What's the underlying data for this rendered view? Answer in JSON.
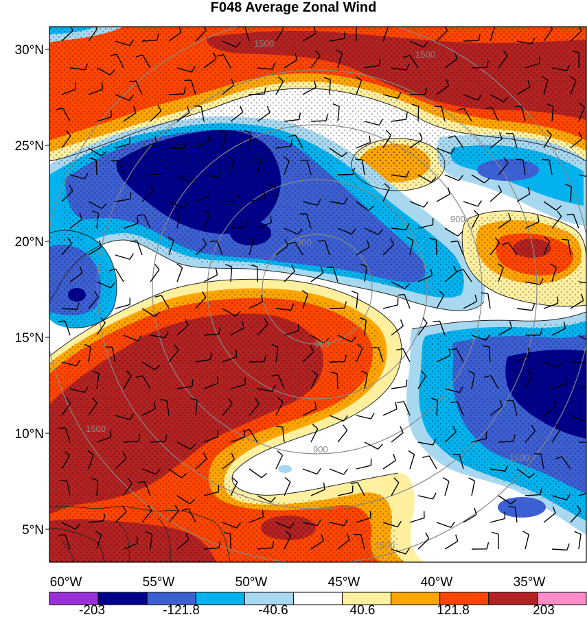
{
  "title": "F048 Average Zonal Wind",
  "lat_labels": [
    "30°N",
    "25°N",
    "20°N",
    "15°N",
    "10°N",
    "5°N"
  ],
  "lon_labels": [
    "60°W",
    "55°W",
    "50°W",
    "45°W",
    "40°W",
    "35°W"
  ],
  "colorbar": {
    "labels": [
      "-203",
      "-121.8",
      "-40.6",
      "40.6",
      "121.8",
      "203"
    ],
    "colors": [
      "#9b30d9",
      "#00008b",
      "#3c5fd2",
      "#00b2ee",
      "#a8d8f0",
      "#ffffff",
      "#fff0a0",
      "#ffa500",
      "#ff4500",
      "#b22222",
      "#ff8cc8"
    ]
  },
  "range_rings": [
    "300",
    "900",
    "1500"
  ],
  "map": {
    "lon_range": [
      -60,
      -31
    ],
    "lat_range": [
      3,
      31.5
    ],
    "fill_field": "zonal wind (shaded)",
    "overlays": [
      "wind barbs",
      "stippling",
      "range rings",
      "coastlines"
    ]
  }
}
